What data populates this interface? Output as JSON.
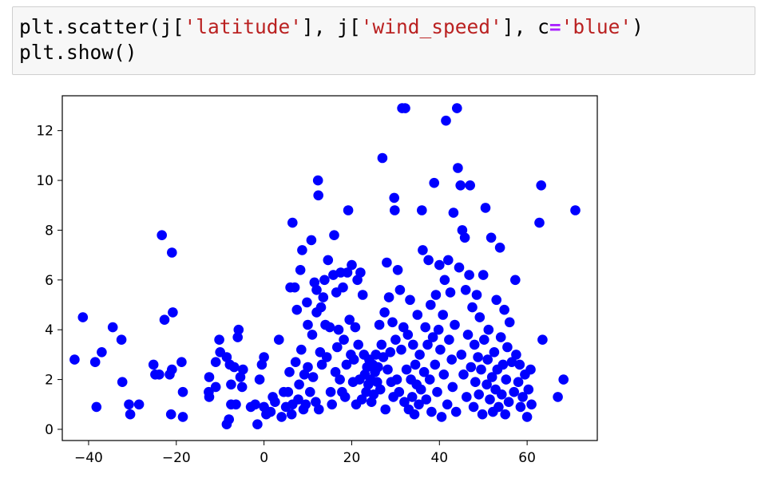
{
  "code_cell": {
    "line1": {
      "p1": "plt.scatter(j[",
      "s1": "'latitude'",
      "p2": "], j[",
      "s2": "'wind_speed'",
      "p3": "], c",
      "op": "=",
      "s3": "'blue'",
      "p4": ")"
    },
    "line2": "plt.show()"
  },
  "chart_data": {
    "type": "scatter",
    "color": "#0000ff",
    "xlim": [
      -46,
      76
    ],
    "ylim": [
      -0.45,
      13.4
    ],
    "xticks": [
      -40,
      -20,
      0,
      20,
      40,
      60
    ],
    "xtick_labels": [
      "−40",
      "−20",
      "0",
      "20",
      "40",
      "60"
    ],
    "yticks": [
      0,
      2,
      4,
      6,
      8,
      10,
      12
    ],
    "ytick_labels": [
      "0",
      "2",
      "4",
      "6",
      "8",
      "10",
      "12"
    ],
    "grid": false,
    "series": [
      {
        "points": [
          [
            -43.2,
            2.8
          ],
          [
            -41.3,
            4.5
          ],
          [
            -38.5,
            2.7
          ],
          [
            -38.2,
            0.9
          ],
          [
            -37.0,
            3.1
          ],
          [
            -34.5,
            4.1
          ],
          [
            -32.5,
            3.6
          ],
          [
            -32.3,
            1.9
          ],
          [
            -30.8,
            1.0
          ],
          [
            -30.5,
            0.6
          ],
          [
            -28.5,
            1.0
          ],
          [
            -25.2,
            2.6
          ],
          [
            -24.8,
            2.2
          ],
          [
            -23.9,
            2.2
          ],
          [
            -23.3,
            7.8
          ],
          [
            -22.7,
            4.4
          ],
          [
            -21.5,
            2.2
          ],
          [
            -21.0,
            2.4
          ],
          [
            -21.0,
            7.1
          ],
          [
            -21.2,
            0.6
          ],
          [
            -20.8,
            4.7
          ],
          [
            -18.8,
            2.7
          ],
          [
            -18.5,
            1.5
          ],
          [
            -18.5,
            0.5
          ],
          [
            -12.5,
            2.1
          ],
          [
            -12.6,
            1.5
          ],
          [
            -12.5,
            1.3
          ],
          [
            -11.0,
            2.7
          ],
          [
            -11.0,
            1.7
          ],
          [
            -10.2,
            3.6
          ],
          [
            -10.0,
            3.1
          ],
          [
            -8.5,
            2.9
          ],
          [
            -8.5,
            0.2
          ],
          [
            -8.0,
            0.4
          ],
          [
            -7.8,
            2.6
          ],
          [
            -7.5,
            1.0
          ],
          [
            -7.5,
            1.8
          ],
          [
            -6.8,
            2.5
          ],
          [
            -6.4,
            1.0
          ],
          [
            -6.0,
            3.7
          ],
          [
            -5.8,
            4.0
          ],
          [
            -5.4,
            2.1
          ],
          [
            -5.0,
            1.7
          ],
          [
            -4.8,
            2.4
          ],
          [
            -3.0,
            0.9
          ],
          [
            -2.0,
            1.0
          ],
          [
            -1.5,
            0.2
          ],
          [
            -1.0,
            2.0
          ],
          [
            -0.5,
            2.6
          ],
          [
            0.0,
            0.9
          ],
          [
            0.0,
            2.9
          ],
          [
            0.5,
            0.6
          ],
          [
            1.5,
            0.7
          ],
          [
            2.0,
            1.3
          ],
          [
            2.5,
            1.1
          ],
          [
            3.4,
            3.6
          ],
          [
            4.0,
            0.5
          ],
          [
            4.5,
            1.5
          ],
          [
            5.0,
            0.9
          ],
          [
            5.5,
            1.5
          ],
          [
            5.8,
            2.3
          ],
          [
            6.0,
            5.7
          ],
          [
            6.3,
            0.6
          ],
          [
            6.5,
            8.3
          ],
          [
            6.5,
            1.0
          ],
          [
            7.0,
            5.7
          ],
          [
            7.2,
            2.7
          ],
          [
            7.5,
            4.8
          ],
          [
            7.8,
            1.2
          ],
          [
            8.0,
            1.8
          ],
          [
            8.3,
            6.4
          ],
          [
            8.5,
            3.2
          ],
          [
            8.7,
            7.2
          ],
          [
            9.0,
            0.8
          ],
          [
            9.2,
            2.2
          ],
          [
            9.5,
            1.0
          ],
          [
            9.8,
            5.1
          ],
          [
            10.0,
            2.5
          ],
          [
            10.0,
            4.2
          ],
          [
            10.5,
            1.5
          ],
          [
            10.8,
            7.6
          ],
          [
            11.0,
            3.8
          ],
          [
            11.2,
            2.1
          ],
          [
            11.5,
            5.9
          ],
          [
            11.8,
            1.1
          ],
          [
            12.0,
            5.6
          ],
          [
            12.0,
            4.7
          ],
          [
            12.3,
            10.0
          ],
          [
            12.4,
            9.4
          ],
          [
            12.5,
            0.8
          ],
          [
            12.8,
            3.1
          ],
          [
            13.0,
            4.9
          ],
          [
            13.2,
            2.6
          ],
          [
            13.5,
            5.3
          ],
          [
            13.8,
            6.0
          ],
          [
            14.0,
            4.2
          ],
          [
            14.3,
            2.9
          ],
          [
            14.6,
            6.8
          ],
          [
            15.0,
            4.1
          ],
          [
            15.2,
            1.5
          ],
          [
            15.5,
            1.0
          ],
          [
            15.8,
            6.2
          ],
          [
            16.0,
            7.8
          ],
          [
            16.3,
            2.3
          ],
          [
            16.5,
            5.5
          ],
          [
            16.7,
            3.3
          ],
          [
            17.0,
            4.0
          ],
          [
            17.3,
            2.0
          ],
          [
            17.5,
            6.3
          ],
          [
            17.8,
            1.5
          ],
          [
            18.0,
            5.7
          ],
          [
            18.2,
            3.6
          ],
          [
            18.5,
            1.3
          ],
          [
            18.8,
            2.6
          ],
          [
            19.0,
            6.3
          ],
          [
            19.2,
            8.8
          ],
          [
            19.5,
            4.4
          ],
          [
            19.8,
            3.0
          ],
          [
            20.0,
            6.6
          ],
          [
            20.3,
            1.9
          ],
          [
            20.5,
            2.8
          ],
          [
            20.8,
            4.1
          ],
          [
            21.0,
            1.0
          ],
          [
            21.3,
            6.0
          ],
          [
            21.5,
            3.4
          ],
          [
            21.8,
            2.0
          ],
          [
            22.0,
            6.3
          ],
          [
            22.3,
            1.2
          ],
          [
            22.5,
            5.4
          ],
          [
            22.8,
            3.0
          ],
          [
            23.0,
            2.2
          ],
          [
            23.3,
            1.5
          ],
          [
            23.5,
            2.5
          ],
          [
            23.8,
            1.8
          ],
          [
            24.0,
            2.8
          ],
          [
            24.3,
            2.0
          ],
          [
            24.5,
            1.1
          ],
          [
            24.8,
            2.6
          ],
          [
            25.0,
            1.4
          ],
          [
            25.3,
            2.3
          ],
          [
            25.5,
            3.0
          ],
          [
            25.8,
            1.9
          ],
          [
            26.0,
            2.5
          ],
          [
            26.3,
            4.2
          ],
          [
            26.5,
            1.6
          ],
          [
            26.8,
            3.4
          ],
          [
            27.0,
            10.9
          ],
          [
            27.2,
            2.9
          ],
          [
            27.5,
            4.7
          ],
          [
            27.7,
            0.8
          ],
          [
            28.0,
            6.7
          ],
          [
            28.2,
            2.4
          ],
          [
            28.5,
            5.3
          ],
          [
            28.8,
            3.1
          ],
          [
            29.0,
            1.9
          ],
          [
            29.3,
            4.3
          ],
          [
            29.5,
            1.3
          ],
          [
            29.7,
            9.3
          ],
          [
            29.8,
            8.8
          ],
          [
            30.0,
            3.6
          ],
          [
            30.3,
            2.0
          ],
          [
            30.5,
            6.4
          ],
          [
            30.8,
            1.5
          ],
          [
            31.0,
            5.6
          ],
          [
            31.3,
            3.2
          ],
          [
            31.5,
            12.9
          ],
          [
            31.8,
            4.1
          ],
          [
            32.0,
            1.1
          ],
          [
            32.2,
            12.9
          ],
          [
            32.5,
            2.4
          ],
          [
            32.8,
            3.8
          ],
          [
            33.0,
            0.8
          ],
          [
            33.3,
            5.2
          ],
          [
            33.5,
            2.0
          ],
          [
            33.8,
            1.3
          ],
          [
            34.0,
            3.4
          ],
          [
            34.3,
            0.6
          ],
          [
            34.5,
            2.6
          ],
          [
            34.8,
            1.8
          ],
          [
            35.0,
            4.6
          ],
          [
            35.3,
            1.0
          ],
          [
            35.5,
            3.0
          ],
          [
            35.8,
            1.6
          ],
          [
            36.0,
            8.8
          ],
          [
            36.2,
            7.2
          ],
          [
            36.5,
            2.3
          ],
          [
            36.8,
            4.1
          ],
          [
            37.0,
            1.2
          ],
          [
            37.3,
            3.4
          ],
          [
            37.5,
            6.8
          ],
          [
            37.8,
            2.0
          ],
          [
            38.0,
            5.0
          ],
          [
            38.2,
            0.7
          ],
          [
            38.5,
            3.7
          ],
          [
            38.8,
            9.9
          ],
          [
            39.0,
            2.6
          ],
          [
            39.2,
            5.4
          ],
          [
            39.5,
            1.5
          ],
          [
            39.8,
            4.0
          ],
          [
            40.0,
            6.6
          ],
          [
            40.2,
            3.2
          ],
          [
            40.5,
            0.5
          ],
          [
            40.8,
            4.6
          ],
          [
            41.0,
            2.2
          ],
          [
            41.2,
            6.0
          ],
          [
            41.5,
            12.4
          ],
          [
            41.8,
            1.0
          ],
          [
            42.0,
            6.8
          ],
          [
            42.2,
            3.6
          ],
          [
            42.5,
            5.5
          ],
          [
            42.8,
            2.8
          ],
          [
            43.0,
            1.7
          ],
          [
            43.2,
            8.7
          ],
          [
            43.5,
            4.2
          ],
          [
            43.8,
            0.7
          ],
          [
            44.0,
            12.9
          ],
          [
            44.2,
            10.5
          ],
          [
            44.5,
            6.5
          ],
          [
            44.8,
            9.8
          ],
          [
            45.0,
            3.0
          ],
          [
            45.2,
            8.0
          ],
          [
            45.5,
            2.2
          ],
          [
            45.8,
            7.7
          ],
          [
            46.0,
            5.6
          ],
          [
            46.2,
            1.3
          ],
          [
            46.5,
            3.8
          ],
          [
            46.8,
            6.2
          ],
          [
            47.0,
            9.8
          ],
          [
            47.2,
            2.5
          ],
          [
            47.5,
            4.9
          ],
          [
            47.8,
            0.9
          ],
          [
            48.0,
            3.4
          ],
          [
            48.2,
            1.9
          ],
          [
            48.5,
            5.4
          ],
          [
            48.8,
            2.9
          ],
          [
            49.0,
            1.4
          ],
          [
            49.2,
            4.5
          ],
          [
            49.5,
            2.4
          ],
          [
            49.8,
            0.6
          ],
          [
            50.0,
            6.2
          ],
          [
            50.2,
            3.6
          ],
          [
            50.5,
            8.9
          ],
          [
            50.8,
            1.8
          ],
          [
            51.0,
            2.8
          ],
          [
            51.2,
            4.0
          ],
          [
            51.5,
            1.2
          ],
          [
            51.8,
            7.7
          ],
          [
            52.0,
            2.1
          ],
          [
            52.2,
            0.7
          ],
          [
            52.5,
            3.1
          ],
          [
            52.8,
            1.6
          ],
          [
            53.0,
            5.2
          ],
          [
            53.2,
            2.4
          ],
          [
            53.5,
            0.9
          ],
          [
            53.8,
            7.3
          ],
          [
            54.0,
            3.7
          ],
          [
            54.2,
            1.4
          ],
          [
            54.5,
            2.6
          ],
          [
            54.8,
            4.8
          ],
          [
            55.0,
            0.6
          ],
          [
            55.2,
            2.0
          ],
          [
            55.5,
            3.3
          ],
          [
            55.8,
            1.1
          ],
          [
            56.0,
            4.3
          ],
          [
            56.5,
            2.7
          ],
          [
            57.0,
            1.5
          ],
          [
            57.3,
            6.0
          ],
          [
            57.5,
            3.0
          ],
          [
            58.0,
            1.9
          ],
          [
            58.3,
            2.6
          ],
          [
            58.5,
            0.9
          ],
          [
            59.0,
            1.3
          ],
          [
            59.5,
            2.2
          ],
          [
            60.0,
            0.5
          ],
          [
            60.3,
            1.6
          ],
          [
            60.8,
            2.4
          ],
          [
            61.0,
            1.0
          ],
          [
            62.8,
            8.3
          ],
          [
            63.2,
            9.8
          ],
          [
            63.5,
            3.6
          ],
          [
            67.0,
            1.3
          ],
          [
            68.3,
            2.0
          ],
          [
            71.0,
            8.8
          ]
        ]
      }
    ]
  }
}
